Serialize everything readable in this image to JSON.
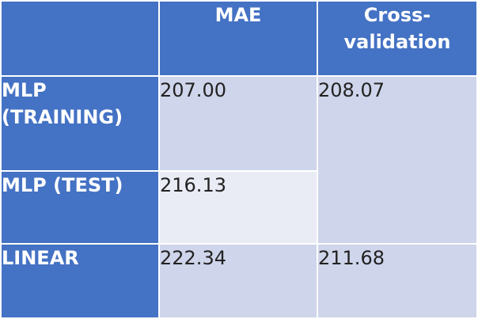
{
  "table": {
    "header": {
      "corner": "",
      "mae": "MAE",
      "cv": "Cross-\nvalidation"
    },
    "rows": [
      {
        "label": "MLP\n(TRAINING)",
        "mae": "207.00"
      },
      {
        "label": "MLP (TEST)",
        "mae": "216.13"
      },
      {
        "label": "LINEAR",
        "mae": "222.34",
        "cv": "211.68"
      }
    ],
    "mlp_cv": "208.07"
  },
  "colors": {
    "header_blue": "#4472c4",
    "cell_dark": "#cfd5ea",
    "cell_light": "#e9ebf5",
    "header_text": "#ffffff",
    "body_text": "#222222"
  }
}
